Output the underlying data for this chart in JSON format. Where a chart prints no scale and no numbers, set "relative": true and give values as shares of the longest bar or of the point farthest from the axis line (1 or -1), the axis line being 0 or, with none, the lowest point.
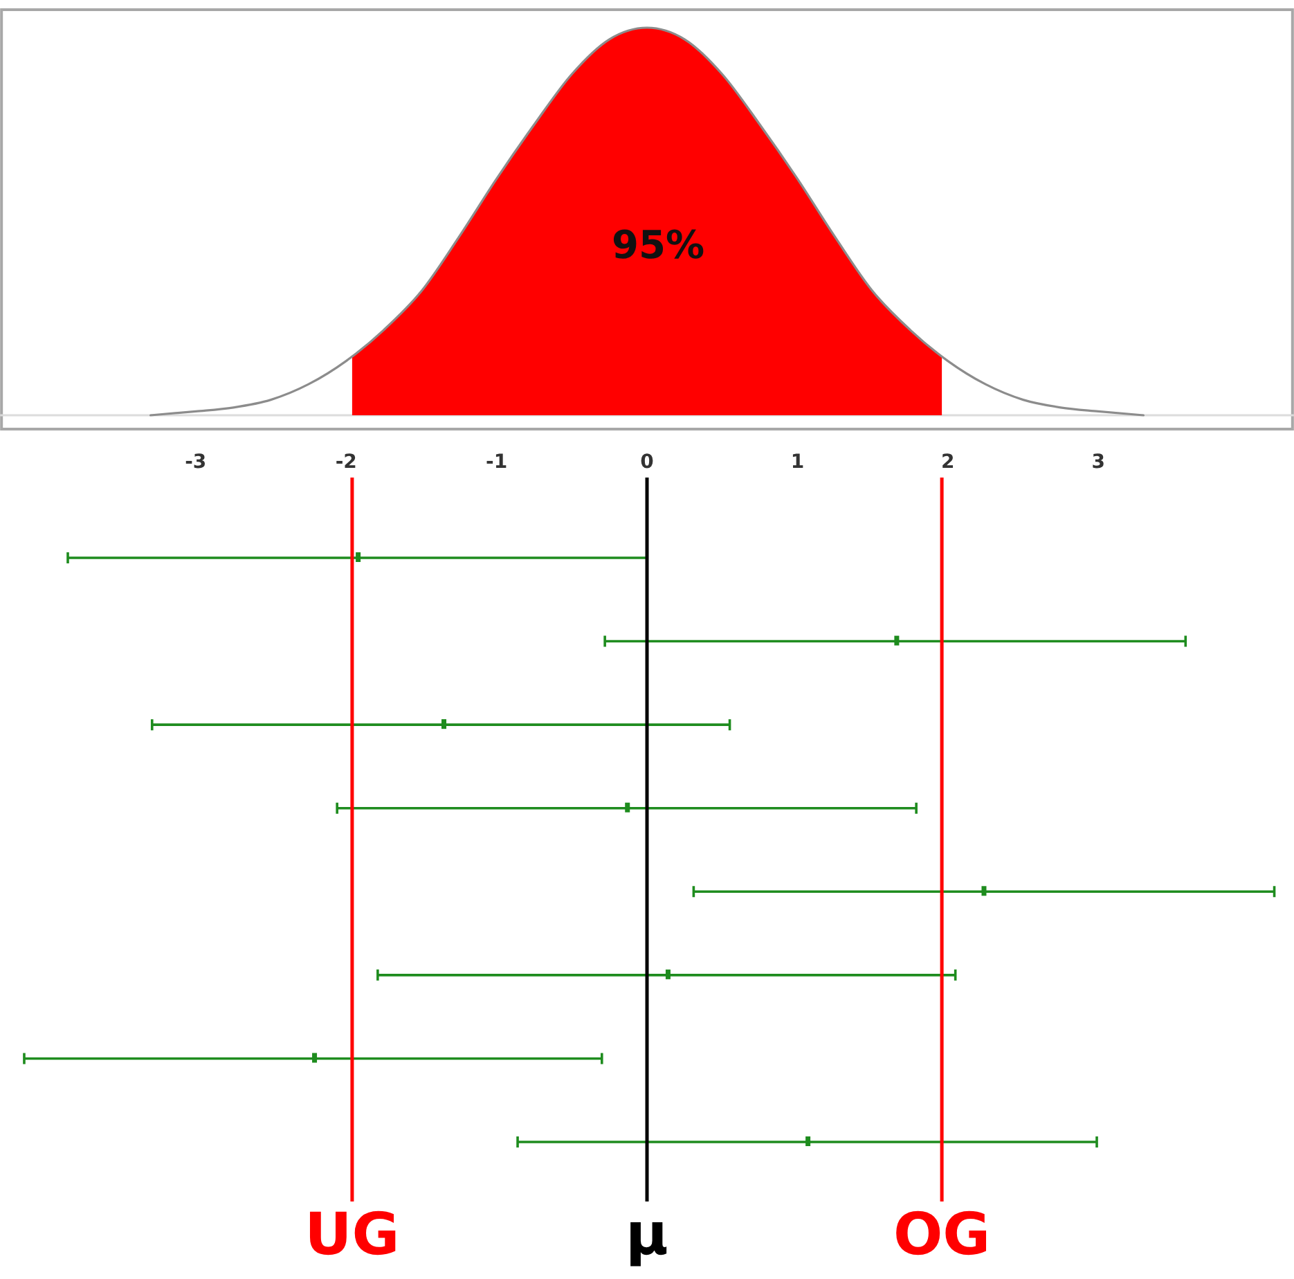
{
  "chart_data": [
    {
      "type": "line",
      "relative": true,
      "xlim": [
        -4.3,
        4.3
      ],
      "xticks": [
        -3,
        -2,
        -1,
        0,
        1,
        2,
        3
      ],
      "tick_labels": "x",
      "annotations": [
        "95%"
      ],
      "series": [
        {
          "type": "area",
          "color": "#ff0000",
          "x": [
            -1.96,
            -1.75,
            -1.5,
            -1.25,
            -1,
            -0.75,
            -0.5,
            -0.25,
            0,
            0.25,
            0.5,
            0.75,
            1,
            1.25,
            1.5,
            1.75,
            1.96
          ],
          "values": [
            0.15,
            0.22,
            0.32,
            0.46,
            0.61,
            0.75,
            0.88,
            0.97,
            1,
            0.97,
            0.88,
            0.75,
            0.61,
            0.46,
            0.32,
            0.22,
            0.15
          ]
        },
        {
          "color": "#8c8c8c",
          "x": [
            -3.3,
            -3,
            -2.75,
            -2.5,
            -2.25,
            -2,
            -1.75,
            -1.5,
            -1.25,
            -1,
            -0.75,
            -0.5,
            -0.25,
            0,
            0.25,
            0.5,
            0.75,
            1,
            1.25,
            1.5,
            1.75,
            2,
            2.25,
            2.5,
            2.75,
            3,
            3.3
          ],
          "values": [
            0,
            0.01,
            0.02,
            0.04,
            0.08,
            0.14,
            0.22,
            0.32,
            0.46,
            0.61,
            0.75,
            0.88,
            0.97,
            1,
            0.97,
            0.88,
            0.75,
            0.61,
            0.46,
            0.32,
            0.22,
            0.14,
            0.08,
            0.04,
            0.02,
            0.01,
            0
          ]
        }
      ]
    },
    {
      "type": "scatter",
      "orientation": "horizontal",
      "xlim": [
        -4.3,
        4.3
      ],
      "tick_labels": false,
      "color": "#1e8c1e",
      "marker": "square",
      "categories": [
        null,
        null,
        null,
        null,
        null,
        null,
        null,
        null
      ],
      "values": [
        -1.92,
        1.66,
        -1.35,
        -0.13,
        2.24,
        0.14,
        -2.21,
        1.07
      ],
      "errors": [
        [
          -3.85,
          0
        ],
        [
          -0.28,
          3.58
        ],
        [
          -3.29,
          0.55
        ],
        [
          -2.06,
          1.79
        ],
        [
          0.31,
          4.17
        ],
        [
          -1.79,
          2.05
        ],
        [
          -4.14,
          -0.3
        ],
        [
          -0.86,
          2.99
        ]
      ],
      "ref_lines": [
        {
          "axis": "x",
          "value": -1.96,
          "label": "UG",
          "color": "#ff0000"
        },
        {
          "axis": "x",
          "value": 0,
          "label": "μ",
          "color": "#000000"
        },
        {
          "axis": "x",
          "value": 1.96,
          "label": "OG",
          "color": "#ff0000"
        }
      ]
    }
  ]
}
